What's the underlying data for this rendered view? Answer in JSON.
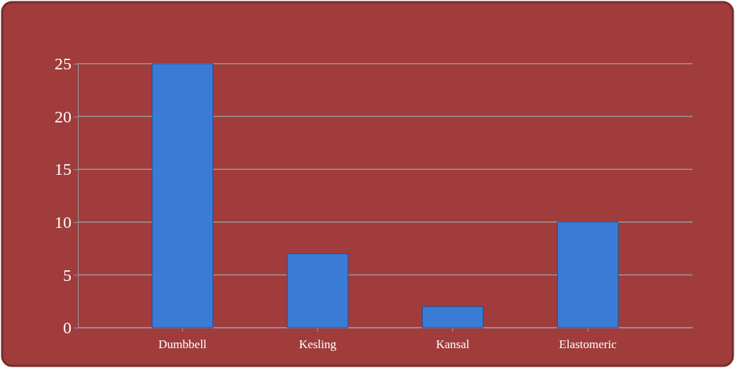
{
  "chart_data": {
    "type": "bar",
    "categories": [
      "Dumbbell",
      "Kesling",
      "Kansal",
      "Elastomeric"
    ],
    "values": [
      25,
      7,
      2,
      10
    ],
    "color": "#3a7bd5",
    "ylim": [
      0,
      25
    ],
    "yticks": [
      0,
      5,
      10,
      15,
      20,
      25
    ],
    "grid": "y"
  }
}
